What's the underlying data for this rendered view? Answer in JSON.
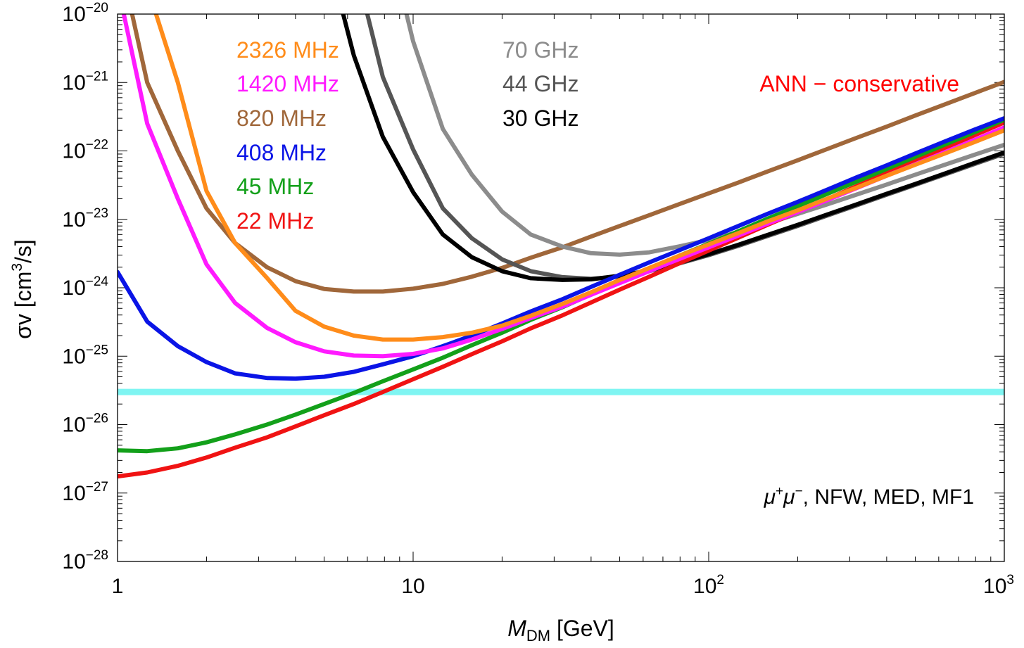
{
  "chart_data": {
    "type": "line",
    "title": "",
    "xscale": "log",
    "yscale": "log",
    "xlim": [
      1,
      1000
    ],
    "ylim": [
      1e-28,
      1e-20
    ],
    "grid": false,
    "xlabel": {
      "main": "M",
      "sub": "DM",
      "rest": " [GeV]"
    },
    "ylabel": {
      "main": "σv [cm",
      "sup": "3",
      "rest": "/s]"
    },
    "xticks": [
      {
        "value": 1,
        "base": "1",
        "exp": ""
      },
      {
        "value": 10,
        "base": "10",
        "exp": ""
      },
      {
        "value": 100,
        "base": "10",
        "exp": "2"
      },
      {
        "value": 1000,
        "base": "10",
        "exp": "3"
      }
    ],
    "yticks": [
      {
        "value": 1e-20,
        "base": "10",
        "exp": "−20"
      },
      {
        "value": 1e-21,
        "base": "10",
        "exp": "−21"
      },
      {
        "value": 1e-22,
        "base": "10",
        "exp": "−22"
      },
      {
        "value": 1e-23,
        "base": "10",
        "exp": "−23"
      },
      {
        "value": 1e-24,
        "base": "10",
        "exp": "−24"
      },
      {
        "value": 1e-25,
        "base": "10",
        "exp": "−25"
      },
      {
        "value": 1e-26,
        "base": "10",
        "exp": "−26"
      },
      {
        "value": 1e-27,
        "base": "10",
        "exp": "−27"
      },
      {
        "value": 1e-28,
        "base": "10",
        "exp": "−28"
      }
    ],
    "reference_line": {
      "y": 3e-26,
      "color": "#7ff5f2"
    },
    "annotations": [
      {
        "text_main": "μ",
        "sup1": "+",
        "text_mid": "μ",
        "sup2": "−",
        "rest": ", NFW, MED, MF1"
      },
      {
        "text": "ANN − conservative",
        "color": "#ff0000"
      }
    ],
    "series": [
      {
        "name": "2326 MHz",
        "color": "#ff8c1a",
        "x": [
          1.35,
          1.6,
          2.0,
          2.5,
          3.2,
          4.0,
          5.0,
          6.3,
          7.9,
          10,
          12.6,
          15.8,
          20,
          25,
          32,
          40,
          50,
          63,
          79,
          100,
          126,
          158,
          200,
          251,
          316,
          398,
          501,
          631,
          794,
          1000
        ],
        "y": [
          1e-20,
          1e-21,
          2.6e-23,
          4.5e-24,
          1.4e-24,
          4.6e-25,
          2.7e-25,
          2e-25,
          1.75e-25,
          1.75e-25,
          1.9e-25,
          2.2e-25,
          2.8e-25,
          3.9e-25,
          5.8e-25,
          8.6e-25,
          1.3e-24,
          1.95e-24,
          2.9e-24,
          4.3e-24,
          6.3e-24,
          9.3e-24,
          1.35e-23,
          2e-23,
          2.9e-23,
          4.3e-23,
          6.3e-23,
          9.2e-23,
          1.35e-22,
          2e-22
        ]
      },
      {
        "name": "1420 MHz",
        "color": "#ff1aff",
        "x": [
          1.05,
          1.26,
          1.6,
          2.0,
          2.5,
          3.2,
          4.0,
          5.0,
          6.3,
          7.9,
          10,
          12.6,
          15.8,
          20,
          25,
          32,
          40,
          50,
          63,
          79,
          100,
          126,
          158,
          200,
          251,
          316,
          398,
          501,
          631,
          794,
          1000
        ],
        "y": [
          1e-20,
          2.5e-22,
          2e-23,
          2.2e-24,
          6e-25,
          2.6e-25,
          1.6e-25,
          1.18e-25,
          1.02e-25,
          1e-25,
          1.08e-25,
          1.3e-25,
          1.75e-25,
          2.5e-25,
          3.6e-25,
          5.3e-25,
          7.9e-25,
          1.17e-24,
          1.75e-24,
          2.6e-24,
          3.9e-24,
          5.8e-24,
          8.6e-24,
          1.28e-23,
          1.9e-23,
          2.85e-23,
          4.3e-23,
          6.4e-23,
          9.6e-23,
          1.45e-22,
          2.2e-22
        ]
      },
      {
        "name": "820 MHz",
        "color": "#a0673a",
        "x": [
          1.12,
          1.26,
          1.6,
          2.0,
          2.5,
          3.2,
          4.0,
          5.0,
          6.3,
          7.9,
          10,
          12.6,
          15.8,
          20,
          25,
          32,
          40,
          50,
          63,
          79,
          100,
          126,
          158,
          200,
          251,
          316,
          398,
          501,
          631,
          794,
          1000
        ],
        "y": [
          1e-20,
          1e-21,
          1e-22,
          1.45e-23,
          4.5e-24,
          2e-24,
          1.25e-24,
          9.6e-25,
          8.8e-25,
          8.8e-25,
          9.7e-25,
          1.14e-24,
          1.45e-24,
          1.95e-24,
          2.75e-24,
          3.9e-24,
          5.6e-24,
          8e-24,
          1.15e-23,
          1.65e-23,
          2.4e-23,
          3.45e-23,
          5e-23,
          7.3e-23,
          1.06e-22,
          1.55e-22,
          2.25e-22,
          3.3e-22,
          4.8e-22,
          7e-22,
          1.02e-21
        ]
      },
      {
        "name": "408 MHz",
        "color": "#0a14e6",
        "x": [
          1,
          1.26,
          1.6,
          2.0,
          2.5,
          3.2,
          4.0,
          5.0,
          6.3,
          7.9,
          10,
          12.6,
          15.8,
          20,
          25,
          32,
          40,
          50,
          63,
          79,
          100,
          126,
          158,
          200,
          251,
          316,
          398,
          501,
          631,
          794,
          1000
        ],
        "y": [
          1.7e-24,
          3.2e-25,
          1.4e-25,
          8.2e-26,
          5.6e-26,
          4.8e-26,
          4.7e-26,
          5e-26,
          5.9e-26,
          7.6e-26,
          1e-25,
          1.4e-25,
          2e-25,
          3e-25,
          4.5e-25,
          6.8e-25,
          1.03e-24,
          1.55e-24,
          2.35e-24,
          3.5e-24,
          5.3e-24,
          8e-24,
          1.2e-23,
          1.8e-23,
          2.7e-23,
          4.1e-23,
          6.1e-23,
          9.2e-23,
          1.38e-22,
          2.05e-22,
          3e-22
        ]
      },
      {
        "name": "45 MHz",
        "color": "#13a01a",
        "x": [
          1,
          1.26,
          1.6,
          2.0,
          2.5,
          3.2,
          4.0,
          5.0,
          6.3,
          7.9,
          10,
          12.6,
          15.8,
          20,
          25,
          32,
          40,
          50,
          63,
          79,
          100,
          126,
          158,
          200,
          251,
          316,
          398,
          501,
          631,
          794,
          1000
        ],
        "y": [
          4.2e-27,
          4.1e-27,
          4.5e-27,
          5.5e-27,
          7.2e-27,
          1e-26,
          1.4e-26,
          2e-26,
          2.9e-26,
          4.3e-26,
          6.4e-26,
          9.5e-26,
          1.45e-25,
          2.2e-25,
          3.4e-25,
          5.2e-25,
          8e-25,
          1.23e-24,
          1.9e-24,
          2.9e-24,
          4.4e-24,
          6.7e-24,
          1.02e-23,
          1.55e-23,
          2.35e-23,
          3.55e-23,
          5.4e-23,
          8.2e-23,
          1.24e-22,
          1.88e-22,
          2.85e-22
        ]
      },
      {
        "name": "22 MHz",
        "color": "#f01313",
        "x": [
          1,
          1.26,
          1.6,
          2.0,
          2.5,
          3.2,
          4.0,
          5.0,
          6.3,
          7.9,
          10,
          12.6,
          15.8,
          20,
          25,
          32,
          40,
          50,
          63,
          79,
          100,
          126,
          158,
          200,
          251,
          316,
          398,
          501,
          631,
          794,
          1000
        ],
        "y": [
          1.75e-27,
          2e-27,
          2.5e-27,
          3.3e-27,
          4.6e-27,
          6.5e-27,
          9.4e-27,
          1.37e-26,
          2e-26,
          3e-26,
          4.6e-26,
          7e-26,
          1.07e-25,
          1.65e-25,
          2.55e-25,
          3.95e-25,
          6.1e-25,
          9.4e-25,
          1.45e-24,
          2.25e-24,
          3.5e-24,
          5.4e-24,
          8.3e-24,
          1.28e-23,
          1.97e-23,
          3.05e-23,
          4.7e-23,
          7.2e-23,
          1.1e-22,
          1.7e-22,
          2.6e-22
        ]
      },
      {
        "name": "70 GHz",
        "color": "#8c8c8c",
        "x": [
          9.5,
          10,
          12.6,
          15.8,
          20,
          25,
          32,
          40,
          50,
          63,
          79,
          100,
          126,
          158,
          200,
          251,
          316,
          398,
          501,
          631,
          794,
          1000
        ],
        "y": [
          1e-20,
          4e-21,
          2.1e-22,
          4.5e-23,
          1.3e-23,
          6e-24,
          4e-24,
          3.2e-24,
          3.05e-24,
          3.3e-24,
          4e-24,
          5e-24,
          6.5e-24,
          8.7e-24,
          1.2e-23,
          1.65e-23,
          2.3e-23,
          3.2e-23,
          4.5e-23,
          6.3e-23,
          8.8e-23,
          1.23e-22
        ]
      },
      {
        "name": "44 GHz",
        "color": "#555555",
        "x": [
          7.0,
          7.9,
          10,
          12.6,
          15.8,
          20,
          25,
          32,
          40,
          50,
          63,
          79,
          100,
          126,
          158,
          200,
          251,
          316,
          398,
          501,
          631,
          794,
          1000
        ],
        "y": [
          1e-20,
          1.2e-21,
          1.05e-22,
          1.45e-23,
          5.3e-24,
          2.6e-24,
          1.75e-24,
          1.43e-24,
          1.35e-24,
          1.45e-24,
          1.75e-24,
          2.25e-24,
          3e-24,
          4.1e-24,
          5.7e-24,
          8e-24,
          1.13e-23,
          1.6e-23,
          2.27e-23,
          3.2e-23,
          4.55e-23,
          6.45e-23,
          9.1e-23
        ]
      },
      {
        "name": "30 GHz",
        "color": "#000000",
        "x": [
          5.8,
          6.3,
          7.9,
          10,
          12.6,
          15.8,
          20,
          25,
          32,
          40,
          50,
          63,
          79,
          100,
          126,
          158,
          200,
          251,
          316,
          398,
          501,
          631,
          794,
          1000
        ],
        "y": [
          1e-20,
          2.5e-21,
          1.6e-22,
          2.5e-23,
          6e-24,
          2.8e-24,
          1.75e-24,
          1.38e-24,
          1.3e-24,
          1.33e-24,
          1.5e-24,
          1.8e-24,
          2.3e-24,
          3.1e-24,
          4.25e-24,
          5.9e-24,
          8.3e-24,
          1.17e-23,
          1.65e-23,
          2.35e-23,
          3.3e-23,
          4.7e-23,
          6.7e-23,
          9.5e-23
        ]
      }
    ]
  }
}
